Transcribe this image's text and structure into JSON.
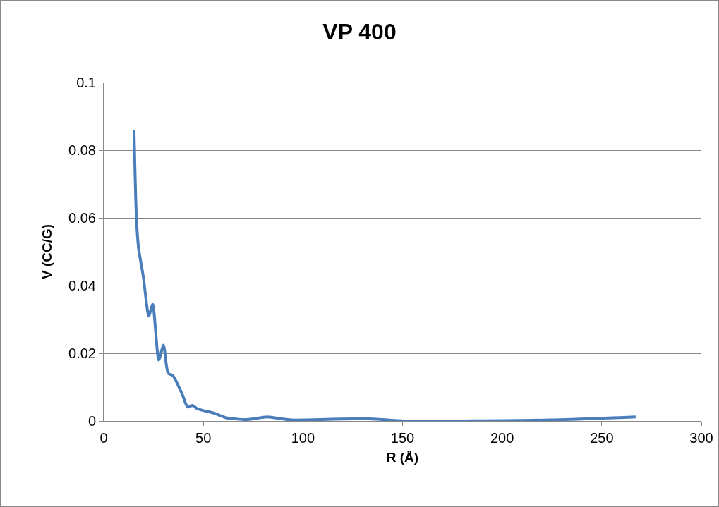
{
  "chart_data": {
    "type": "line",
    "title": "VP 400",
    "xlabel": "R (Å)",
    "ylabel": "V (CC/G)",
    "x": [
      15.2,
      16.4,
      17.5,
      19.9,
      22.6,
      24.6,
      27.6,
      30.0,
      32.3,
      34.7,
      39.4,
      42.1,
      44.5,
      47.0,
      55.3,
      61.2,
      71.8,
      82,
      94,
      132,
      151,
      224,
      267
    ],
    "series": [
      {
        "color": "#4a7ebb",
        "values": [
          0.086,
          0.06,
          0.051,
          0.0425,
          0.031,
          0.0345,
          0.018,
          0.0224,
          0.0141,
          0.0134,
          0.0079,
          0.0041,
          0.0046,
          0.0036,
          0.0023,
          0.001,
          0.0004,
          0.0012,
          0.0003,
          0.0007,
          0,
          0.0003,
          0.0012
        ]
      }
    ],
    "xlim": [
      0,
      300
    ],
    "xticks": [
      0,
      50,
      100,
      150,
      200,
      250,
      300
    ],
    "ylim": [
      0,
      0.1
    ],
    "yticks": [
      0,
      0.02,
      0.04,
      0.06,
      0.08,
      0.1
    ],
    "grid": "y",
    "marker": "none",
    "line_style": "solid"
  }
}
